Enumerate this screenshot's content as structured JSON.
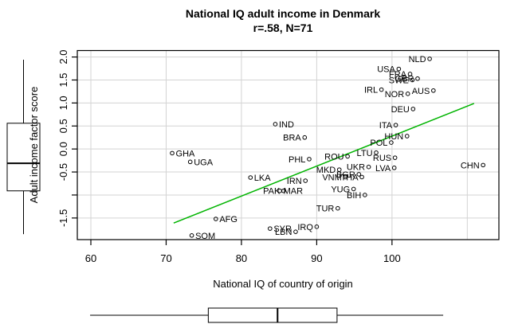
{
  "title": "National IQ adult income in Denmark",
  "subtitle": "r=.58, N=71",
  "colors": {
    "background": "#ffffff",
    "grid": "#d3d3d3",
    "axis": "#000000",
    "point": "#000000",
    "regression_line": "#00b400"
  },
  "chart_data": {
    "type": "scatter",
    "title": "National IQ adult income in Denmark",
    "subtitle": "r=.58, N=71",
    "xlabel": "National IQ of country of origin",
    "ylabel": "Adult income factor score",
    "grid": true,
    "legend": "none",
    "xlim": [
      58.2,
      114.2
    ],
    "ylim": [
      -1.97,
      2.14
    ],
    "x_ticks": [
      60,
      70,
      80,
      90,
      100
    ],
    "x_tick_labels": [
      "60",
      "70",
      "80",
      "90",
      "100"
    ],
    "y_ticks": [
      2.0,
      1.5,
      1.0,
      0.5,
      0.0,
      -0.5,
      -1.0,
      -1.5
    ],
    "y_tick_labels": [
      "2.0",
      "1.5",
      "1.0",
      "0.5",
      "0.0",
      "-0.5",
      "",
      "-1.5"
    ],
    "x_gridlines": [
      60,
      70,
      80,
      90,
      100,
      110
    ],
    "y_gridlines": [
      2.0,
      1.5,
      1.0,
      0.5,
      0.0,
      -0.5,
      -1.0,
      -1.5
    ],
    "points": [
      {
        "code": "NLD",
        "x": 105.0,
        "y": 1.96,
        "side": "left"
      },
      {
        "code": "USA",
        "x": 100.9,
        "y": 1.74,
        "side": "left"
      },
      {
        "code": "FRA",
        "x": 102.4,
        "y": 1.63,
        "side": "left"
      },
      {
        "code": "GBR",
        "x": 103.4,
        "y": 1.53,
        "side": "left"
      },
      {
        "code": "SWE",
        "x": 102.7,
        "y": 1.5,
        "side": "left"
      },
      {
        "code": "IRL",
        "x": 98.6,
        "y": 1.29,
        "side": "left"
      },
      {
        "code": "AUS",
        "x": 105.5,
        "y": 1.27,
        "side": "left"
      },
      {
        "code": "NOR",
        "x": 102.1,
        "y": 1.2,
        "side": "left"
      },
      {
        "code": "DEU",
        "x": 102.8,
        "y": 0.87,
        "side": "left"
      },
      {
        "code": "ITA",
        "x": 100.5,
        "y": 0.52,
        "side": "left"
      },
      {
        "code": "IND",
        "x": 84.5,
        "y": 0.54,
        "side": "right"
      },
      {
        "code": "BRA",
        "x": 88.4,
        "y": 0.25,
        "side": "left"
      },
      {
        "code": "HUN",
        "x": 102.0,
        "y": 0.28,
        "side": "left"
      },
      {
        "code": "POL",
        "x": 99.9,
        "y": 0.14,
        "side": "left"
      },
      {
        "code": "GHA",
        "x": 70.8,
        "y": -0.09,
        "side": "right"
      },
      {
        "code": "UGA",
        "x": 73.2,
        "y": -0.28,
        "side": "right"
      },
      {
        "code": "PHL",
        "x": 89.0,
        "y": -0.22,
        "side": "left"
      },
      {
        "code": "ROU",
        "x": 94.1,
        "y": -0.16,
        "side": "left"
      },
      {
        "code": "LTU",
        "x": 97.9,
        "y": -0.08,
        "side": "left"
      },
      {
        "code": "RUS",
        "x": 100.4,
        "y": -0.19,
        "side": "left"
      },
      {
        "code": "UKR",
        "x": 96.9,
        "y": -0.39,
        "side": "left"
      },
      {
        "code": "LVA",
        "x": 100.3,
        "y": -0.41,
        "side": "left"
      },
      {
        "code": "MKD",
        "x": 93.0,
        "y": -0.45,
        "side": "left"
      },
      {
        "code": "BGR",
        "x": 95.6,
        "y": -0.55,
        "side": "left"
      },
      {
        "code": "CHN",
        "x": 112.1,
        "y": -0.35,
        "side": "left"
      },
      {
        "code": "LKA",
        "x": 81.2,
        "y": -0.62,
        "side": "right"
      },
      {
        "code": "IRN",
        "x": 88.5,
        "y": -0.69,
        "side": "left"
      },
      {
        "code": "VNM",
        "x": 93.8,
        "y": -0.61,
        "side": "left"
      },
      {
        "code": "THA",
        "x": 96.0,
        "y": -0.61,
        "side": "left"
      },
      {
        "code": "PAK",
        "x": 85.6,
        "y": -0.91,
        "side": "left"
      },
      {
        "code": "MAR",
        "x": 85.1,
        "y": -0.91,
        "side": "right"
      },
      {
        "code": "YUG",
        "x": 94.9,
        "y": -0.87,
        "side": "left"
      },
      {
        "code": "BIH",
        "x": 96.4,
        "y": -1.0,
        "side": "left"
      },
      {
        "code": "TUR",
        "x": 92.8,
        "y": -1.29,
        "side": "left"
      },
      {
        "code": "AFG",
        "x": 76.6,
        "y": -1.52,
        "side": "right"
      },
      {
        "code": "SOM",
        "x": 73.4,
        "y": -1.88,
        "side": "right"
      },
      {
        "code": "SYR",
        "x": 83.8,
        "y": -1.73,
        "side": "right"
      },
      {
        "code": "IRQ",
        "x": 90.0,
        "y": -1.69,
        "side": "left"
      },
      {
        "code": "LBN",
        "x": 87.2,
        "y": -1.8,
        "side": "left"
      }
    ],
    "regression_line": {
      "x1": 71.0,
      "y1": -1.61,
      "x2": 110.9,
      "y2": 0.99
    },
    "x_boxplot": {
      "min": 59.9,
      "q1": 75.6,
      "median": 84.8,
      "q3": 92.7,
      "max": 106.8
    },
    "y_boxplot": {
      "min": -1.85,
      "q1": -0.91,
      "median": -0.31,
      "q3": 0.56,
      "max": 1.94
    }
  }
}
